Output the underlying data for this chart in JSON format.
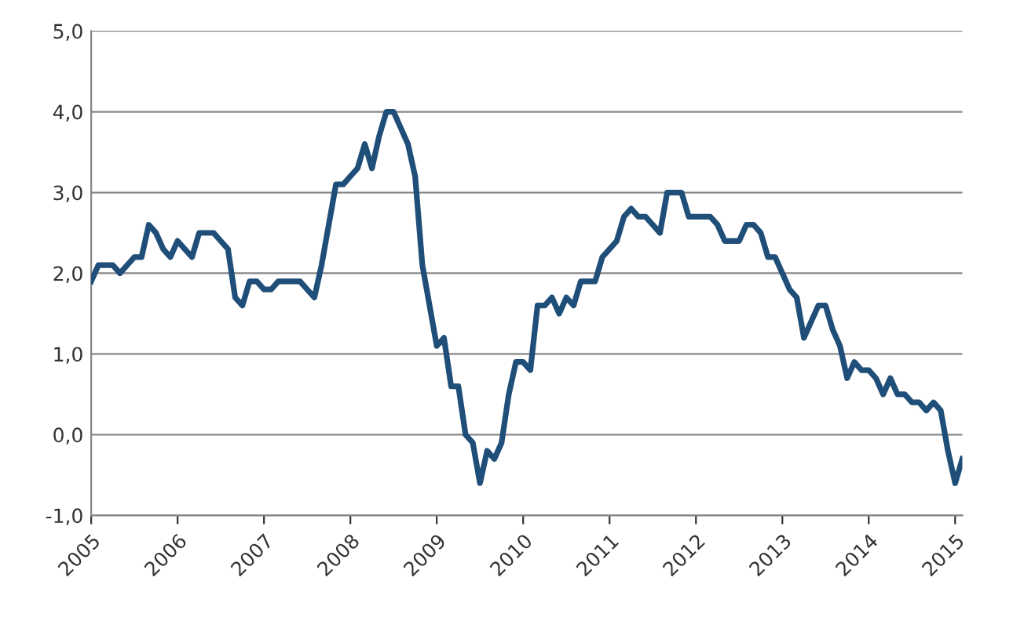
{
  "chart_data": {
    "type": "line",
    "x": [
      "2005-01",
      "2005-02",
      "2005-03",
      "2005-04",
      "2005-05",
      "2005-06",
      "2005-07",
      "2005-08",
      "2005-09",
      "2005-10",
      "2005-11",
      "2005-12",
      "2006-01",
      "2006-02",
      "2006-03",
      "2006-04",
      "2006-05",
      "2006-06",
      "2006-07",
      "2006-08",
      "2006-09",
      "2006-10",
      "2006-11",
      "2006-12",
      "2007-01",
      "2007-02",
      "2007-03",
      "2007-04",
      "2007-05",
      "2007-06",
      "2007-07",
      "2007-08",
      "2007-09",
      "2007-10",
      "2007-11",
      "2007-12",
      "2008-01",
      "2008-02",
      "2008-03",
      "2008-04",
      "2008-05",
      "2008-06",
      "2008-07",
      "2008-08",
      "2008-09",
      "2008-10",
      "2008-11",
      "2008-12",
      "2009-01",
      "2009-02",
      "2009-03",
      "2009-04",
      "2009-05",
      "2009-06",
      "2009-07",
      "2009-08",
      "2009-09",
      "2009-10",
      "2009-11",
      "2009-12",
      "2010-01",
      "2010-02",
      "2010-03",
      "2010-04",
      "2010-05",
      "2010-06",
      "2010-07",
      "2010-08",
      "2010-09",
      "2010-10",
      "2010-11",
      "2010-12",
      "2011-01",
      "2011-02",
      "2011-03",
      "2011-04",
      "2011-05",
      "2011-06",
      "2011-07",
      "2011-08",
      "2011-09",
      "2011-10",
      "2011-11",
      "2011-12",
      "2012-01",
      "2012-02",
      "2012-03",
      "2012-04",
      "2012-05",
      "2012-06",
      "2012-07",
      "2012-08",
      "2012-09",
      "2012-10",
      "2012-11",
      "2012-12",
      "2013-01",
      "2013-02",
      "2013-03",
      "2013-04",
      "2013-05",
      "2013-06",
      "2013-07",
      "2013-08",
      "2013-09",
      "2013-10",
      "2013-11",
      "2013-12",
      "2014-01",
      "2014-02",
      "2014-03",
      "2014-04",
      "2014-05",
      "2014-06",
      "2014-07",
      "2014-08",
      "2014-09",
      "2014-10",
      "2014-11",
      "2014-12",
      "2015-01",
      "2015-02"
    ],
    "series": [
      {
        "color": "#1f4e79",
        "values": [
          1.9,
          2.1,
          2.1,
          2.1,
          2.0,
          2.1,
          2.2,
          2.2,
          2.6,
          2.5,
          2.3,
          2.2,
          2.4,
          2.3,
          2.2,
          2.5,
          2.5,
          2.5,
          2.4,
          2.3,
          1.7,
          1.6,
          1.9,
          1.9,
          1.8,
          1.8,
          1.9,
          1.9,
          1.9,
          1.9,
          1.8,
          1.7,
          2.1,
          2.6,
          3.1,
          3.1,
          3.2,
          3.3,
          3.6,
          3.3,
          3.7,
          4.0,
          4.0,
          3.8,
          3.6,
          3.2,
          2.1,
          1.6,
          1.1,
          1.2,
          0.6,
          0.6,
          0.0,
          -0.1,
          -0.6,
          -0.2,
          -0.3,
          -0.1,
          0.5,
          0.9,
          0.9,
          0.8,
          1.6,
          1.6,
          1.7,
          1.5,
          1.7,
          1.6,
          1.9,
          1.9,
          1.9,
          2.2,
          2.3,
          2.4,
          2.7,
          2.8,
          2.7,
          2.7,
          2.6,
          2.5,
          3.0,
          3.0,
          3.0,
          2.7,
          2.7,
          2.7,
          2.7,
          2.6,
          2.4,
          2.4,
          2.4,
          2.6,
          2.6,
          2.5,
          2.2,
          2.2,
          2.0,
          1.8,
          1.7,
          1.2,
          1.4,
          1.6,
          1.6,
          1.3,
          1.1,
          0.7,
          0.9,
          0.8,
          0.8,
          0.7,
          0.5,
          0.7,
          0.5,
          0.5,
          0.4,
          0.4,
          0.3,
          0.4,
          0.3,
          -0.2,
          -0.6,
          -0.3
        ]
      }
    ],
    "xlim": [
      "2005-01",
      "2015-02"
    ],
    "xticks": [
      "2005",
      "2006",
      "2007",
      "2008",
      "2009",
      "2010",
      "2011",
      "2012",
      "2013",
      "2014",
      "2015"
    ],
    "ylim": [
      -1,
      5
    ],
    "yticks": [
      {
        "value": -1,
        "label": "-1,0"
      },
      {
        "value": 0,
        "label": "0,0"
      },
      {
        "value": 1,
        "label": "1,0"
      },
      {
        "value": 2,
        "label": "2,0"
      },
      {
        "value": 3,
        "label": "3,0"
      },
      {
        "value": 4,
        "label": "4,0"
      },
      {
        "value": 5,
        "label": "5,0"
      }
    ],
    "grid": "y",
    "marker": "none",
    "line_style": "solid",
    "legend": false
  }
}
